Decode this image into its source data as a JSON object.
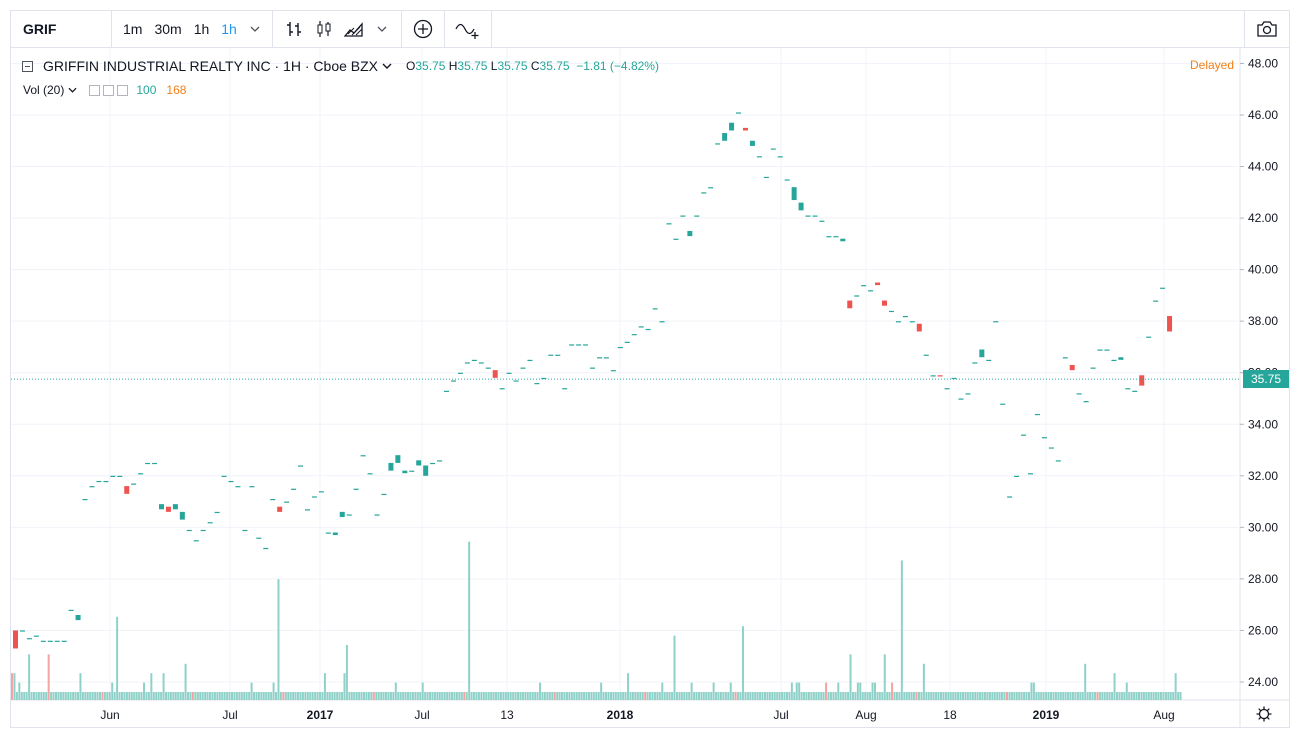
{
  "toolbar": {
    "symbol": "GRIF",
    "intervals": [
      "1m",
      "30m",
      "1h"
    ],
    "active_interval": "1h",
    "chevron": "⌄",
    "icons": [
      "bar-style-icon",
      "candle-style-icon",
      "area-style-icon",
      "compare-add-icon",
      "indicators-icon",
      "camera-icon"
    ]
  },
  "legend": {
    "title": "GRIFFIN INDUSTRIAL REALTY INC · 1H · Cboe BZX",
    "o_label": "O",
    "o": "35.75",
    "h_label": "H",
    "h": "35.75",
    "l_label": "L",
    "l": "35.75",
    "c_label": "C",
    "c": "35.75",
    "change": "−1.81 (−4.82%)",
    "delayed": "Delayed"
  },
  "volume_legend": {
    "label": "Vol (20)",
    "v1": "100",
    "v2": "168"
  },
  "colors": {
    "up": "#26a69a",
    "down": "#ef5350",
    "vol_up": "#8fd1c9",
    "vol_down": "#f4a3a3",
    "grid": "#f0f3fa"
  },
  "last_price": "35.75",
  "chart_data": {
    "type": "bar",
    "y_ticks": [
      "48.00",
      "46.00",
      "44.00",
      "42.00",
      "40.00",
      "38.00",
      "36.00",
      "34.00",
      "32.00",
      "30.00",
      "28.00",
      "26.00",
      "24.00"
    ],
    "y_range": [
      23.3,
      48.6
    ],
    "x_ticks": [
      "Jun",
      "Jul",
      "2017",
      "Jul",
      "13",
      "2018",
      "Jul",
      "Aug",
      "18",
      "2019",
      "Aug"
    ],
    "bars": [
      {
        "p": [
          26,
          25.3
        ],
        "d": 1
      },
      {
        "p": [
          26,
          26
        ]
      },
      {
        "p": [
          25.7,
          25.7
        ]
      },
      {
        "p": [
          25.8,
          25.8
        ]
      },
      {
        "p": [
          25.6,
          25.6
        ]
      },
      {
        "p": [
          25.6,
          25.6
        ]
      },
      {
        "p": [
          25.6,
          25.6
        ]
      },
      {
        "p": [
          25.6,
          25.6
        ]
      },
      {
        "p": [
          26.8,
          26.8
        ]
      },
      {
        "p": [
          26.6,
          26.4
        ]
      },
      {
        "p": [
          31.1,
          31.1
        ]
      },
      {
        "p": [
          31.6,
          31.6
        ]
      },
      {
        "p": [
          31.8,
          31.8
        ]
      },
      {
        "p": [
          31.8,
          31.8
        ]
      },
      {
        "p": [
          32,
          32
        ]
      },
      {
        "p": [
          32,
          32
        ]
      },
      {
        "p": [
          31.6,
          31.3
        ],
        "d": 1
      },
      {
        "p": [
          31.7,
          31.7
        ]
      },
      {
        "p": [
          32.1,
          32.1
        ]
      },
      {
        "p": [
          32.5,
          32.5
        ]
      },
      {
        "p": [
          32.5,
          32.5
        ]
      },
      {
        "p": [
          30.7,
          30.9
        ]
      },
      {
        "p": [
          30.8,
          30.6
        ],
        "d": 1
      },
      {
        "p": [
          30.7,
          30.9
        ]
      },
      {
        "p": [
          30.6,
          30.3
        ]
      },
      {
        "p": [
          29.9,
          29.9
        ]
      },
      {
        "p": [
          29.5,
          29.5
        ]
      },
      {
        "p": [
          29.9,
          29.9
        ]
      },
      {
        "p": [
          30.2,
          30.2
        ]
      },
      {
        "p": [
          30.6,
          30.6
        ]
      },
      {
        "p": [
          32,
          32
        ]
      },
      {
        "p": [
          31.8,
          31.8
        ]
      },
      {
        "p": [
          31.6,
          31.6
        ]
      },
      {
        "p": [
          29.9,
          29.9
        ]
      },
      {
        "p": [
          31.6,
          31.6
        ]
      },
      {
        "p": [
          29.6,
          29.6
        ]
      },
      {
        "p": [
          29.2,
          29.2
        ]
      },
      {
        "p": [
          31.1,
          31.1
        ]
      },
      {
        "p": [
          30.8,
          30.6
        ],
        "d": 1
      },
      {
        "p": [
          31,
          31
        ]
      },
      {
        "p": [
          31.5,
          31.5
        ]
      },
      {
        "p": [
          32.4,
          32.4
        ]
      },
      {
        "p": [
          30.7,
          30.7
        ]
      },
      {
        "p": [
          31.2,
          31.2
        ]
      },
      {
        "p": [
          31.4,
          31.4
        ]
      },
      {
        "p": [
          29.8,
          29.8
        ]
      },
      {
        "p": [
          29.7,
          29.8
        ]
      },
      {
        "p": [
          30.4,
          30.6
        ]
      },
      {
        "p": [
          30.5,
          30.5
        ]
      },
      {
        "p": [
          31.5,
          31.5
        ]
      },
      {
        "p": [
          32.8,
          32.8
        ]
      },
      {
        "p": [
          32.1,
          32.1
        ]
      },
      {
        "p": [
          30.5,
          30.5
        ]
      },
      {
        "p": [
          31.3,
          31.3
        ]
      },
      {
        "p": [
          32.2,
          32.5
        ]
      },
      {
        "p": [
          32.5,
          32.8
        ]
      },
      {
        "p": [
          32.2,
          32.1
        ]
      },
      {
        "p": [
          32.2,
          32.2
        ]
      },
      {
        "p": [
          32.4,
          32.6
        ]
      },
      {
        "p": [
          32,
          32.4
        ]
      },
      {
        "p": [
          32.5,
          32.5
        ]
      },
      {
        "p": [
          32.6,
          32.6
        ]
      },
      {
        "p": [
          35.3,
          35.3
        ]
      },
      {
        "p": [
          35.7,
          35.7
        ]
      },
      {
        "p": [
          36,
          36
        ]
      },
      {
        "p": [
          36.4,
          36.4
        ]
      },
      {
        "p": [
          36.5,
          36.5
        ]
      },
      {
        "p": [
          36.4,
          36.4
        ]
      },
      {
        "p": [
          36.2,
          36.2
        ]
      },
      {
        "p": [
          36.1,
          35.8
        ],
        "d": 1
      },
      {
        "p": [
          35.4,
          35.4
        ]
      },
      {
        "p": [
          36,
          36
        ]
      },
      {
        "p": [
          35.7,
          35.7
        ]
      },
      {
        "p": [
          36.2,
          36.2
        ]
      },
      {
        "p": [
          36.5,
          36.5
        ]
      },
      {
        "p": [
          35.6,
          35.6
        ]
      },
      {
        "p": [
          35.8,
          35.8
        ]
      },
      {
        "p": [
          36.7,
          36.7
        ]
      },
      {
        "p": [
          36.7,
          36.7
        ]
      },
      {
        "p": [
          35.4,
          35.4
        ]
      },
      {
        "p": [
          37.1,
          37.1
        ]
      },
      {
        "p": [
          37.1,
          37.1
        ]
      },
      {
        "p": [
          37.1,
          37.1
        ]
      },
      {
        "p": [
          36.2,
          36.2
        ]
      },
      {
        "p": [
          36.6,
          36.6
        ]
      },
      {
        "p": [
          36.6,
          36.6
        ]
      },
      {
        "p": [
          36.1,
          36.1
        ]
      },
      {
        "p": [
          37,
          37
        ]
      },
      {
        "p": [
          37.2,
          37.2
        ]
      },
      {
        "p": [
          37.5,
          37.5
        ]
      },
      {
        "p": [
          37.8,
          37.8
        ]
      },
      {
        "p": [
          37.7,
          37.7
        ]
      },
      {
        "p": [
          38.5,
          38.5
        ]
      },
      {
        "p": [
          38,
          38
        ]
      },
      {
        "p": [
          41.8,
          41.8
        ]
      },
      {
        "p": [
          41.2,
          41.2
        ]
      },
      {
        "p": [
          42.1,
          42.1
        ]
      },
      {
        "p": [
          41.5,
          41.3
        ]
      },
      {
        "p": [
          42.1,
          42.1
        ]
      },
      {
        "p": [
          43,
          43
        ]
      },
      {
        "p": [
          43.2,
          43.2
        ]
      },
      {
        "p": [
          44.9,
          44.9
        ]
      },
      {
        "p": [
          45,
          45.3
        ]
      },
      {
        "p": [
          45.4,
          45.7
        ]
      },
      {
        "p": [
          46.1,
          46.1
        ]
      },
      {
        "p": [
          45.5,
          45.4
        ],
        "d": 1
      },
      {
        "p": [
          45,
          44.8
        ]
      },
      {
        "p": [
          44.4,
          44.4
        ]
      },
      {
        "p": [
          43.6,
          43.6
        ]
      },
      {
        "p": [
          44.7,
          44.7
        ]
      },
      {
        "p": [
          44.4,
          44.4
        ]
      },
      {
        "p": [
          43.5,
          43.5
        ]
      },
      {
        "p": [
          42.7,
          43.2
        ]
      },
      {
        "p": [
          42.3,
          42.6
        ]
      },
      {
        "p": [
          42.1,
          42.1
        ]
      },
      {
        "p": [
          42.1,
          42.1
        ]
      },
      {
        "p": [
          41.9,
          41.9
        ]
      },
      {
        "p": [
          41.3,
          41.3
        ]
      },
      {
        "p": [
          41.3,
          41.3
        ]
      },
      {
        "p": [
          41.1,
          41.2
        ]
      },
      {
        "p": [
          38.8,
          38.5
        ],
        "d": 1
      },
      {
        "p": [
          39,
          39
        ]
      },
      {
        "p": [
          39.4,
          39.4
        ]
      },
      {
        "p": [
          39.2,
          39.2
        ]
      },
      {
        "p": [
          39.5,
          39.4
        ],
        "d": 1
      },
      {
        "p": [
          38.8,
          38.6
        ],
        "d": 1
      },
      {
        "p": [
          38.4,
          38.4
        ]
      },
      {
        "p": [
          38,
          38
        ]
      },
      {
        "p": [
          38.2,
          38.2
        ]
      },
      {
        "p": [
          38,
          38
        ]
      },
      {
        "p": [
          37.9,
          37.6
        ],
        "d": 1
      },
      {
        "p": [
          36.7,
          36.7
        ]
      },
      {
        "p": [
          35.9,
          35.9
        ]
      },
      {
        "p": [
          35.9,
          35.9
        ],
        "d": 1
      },
      {
        "p": [
          35.4,
          35.4
        ]
      },
      {
        "p": [
          35.8,
          35.8
        ]
      },
      {
        "p": [
          35,
          35
        ]
      },
      {
        "p": [
          35.2,
          35.2
        ]
      },
      {
        "p": [
          36.4,
          36.4
        ]
      },
      {
        "p": [
          36.6,
          36.9
        ]
      },
      {
        "p": [
          36.5,
          36.5
        ]
      },
      {
        "p": [
          38,
          38
        ]
      },
      {
        "p": [
          34.8,
          34.8
        ]
      },
      {
        "p": [
          31.2,
          31.2
        ]
      },
      {
        "p": [
          32,
          32
        ]
      },
      {
        "p": [
          33.6,
          33.6
        ]
      },
      {
        "p": [
          32.1,
          32.1
        ]
      },
      {
        "p": [
          34.4,
          34.4
        ]
      },
      {
        "p": [
          33.5,
          33.5
        ]
      },
      {
        "p": [
          33.1,
          33.1
        ]
      },
      {
        "p": [
          32.6,
          32.6
        ]
      },
      {
        "p": [
          36.6,
          36.6
        ]
      },
      {
        "p": [
          36.3,
          36.1
        ],
        "d": 1
      },
      {
        "p": [
          35.2,
          35.2
        ]
      },
      {
        "p": [
          34.9,
          34.9
        ]
      },
      {
        "p": [
          36.2,
          36.2
        ]
      },
      {
        "p": [
          36.9,
          36.9
        ]
      },
      {
        "p": [
          36.9,
          36.9
        ]
      },
      {
        "p": [
          36.5,
          36.5
        ]
      },
      {
        "p": [
          36.5,
          36.6
        ]
      },
      {
        "p": [
          35.4,
          35.4
        ]
      },
      {
        "p": [
          35.3,
          35.3
        ]
      },
      {
        "p": [
          35.9,
          35.5
        ],
        "d": 1
      },
      {
        "p": [
          37.4,
          37.4
        ]
      },
      {
        "p": [
          38.8,
          38.8
        ]
      },
      {
        "p": [
          39.3,
          39.3
        ]
      },
      {
        "p": [
          38.2,
          37.6
        ],
        "d": 1
      }
    ],
    "volume_levels": [
      3,
      3,
      1,
      2,
      1,
      1,
      1,
      5,
      1,
      1,
      1,
      1,
      1,
      1,
      1,
      5,
      1,
      1,
      1,
      1,
      1,
      1,
      1,
      1,
      1,
      1,
      1,
      1,
      3,
      1,
      1,
      1,
      1,
      1,
      1,
      1,
      1,
      1,
      1,
      1,
      1,
      2,
      1,
      9,
      1,
      1,
      1,
      1,
      1,
      1,
      1,
      1,
      1,
      1,
      2,
      1,
      1,
      3,
      1,
      1,
      1,
      1,
      3,
      1,
      1,
      1,
      1,
      1,
      1,
      1,
      1,
      4,
      1,
      1,
      1,
      1,
      1,
      1,
      1,
      1,
      1,
      1,
      1,
      1,
      1,
      1,
      1,
      1,
      1,
      1,
      1,
      1,
      1,
      1,
      1,
      1,
      1,
      1,
      2,
      1,
      1,
      1,
      1,
      1,
      1,
      1,
      1,
      2,
      1,
      13,
      1,
      1,
      1,
      1,
      1,
      1,
      1,
      1,
      1,
      1,
      1,
      1,
      1,
      1,
      1,
      1,
      1,
      1,
      3,
      1,
      1,
      1,
      1,
      1,
      1,
      1,
      3,
      6,
      1,
      1,
      1,
      1,
      1,
      1,
      1,
      1,
      1,
      1,
      1,
      1,
      1,
      1,
      1,
      1,
      1,
      1,
      1,
      2,
      1,
      1,
      1,
      1,
      1,
      1,
      1,
      1,
      1,
      1,
      2,
      1,
      1,
      1,
      1,
      1,
      1,
      1,
      1,
      1,
      1,
      1,
      1,
      1,
      1,
      1,
      1,
      1,
      1,
      17,
      1,
      1,
      1,
      1,
      1,
      1,
      1,
      1,
      1,
      1,
      1,
      1,
      1,
      1,
      1,
      1,
      1,
      1,
      1,
      1,
      1,
      1,
      1,
      1,
      1,
      1,
      1,
      1,
      2,
      1,
      1,
      1,
      1,
      1,
      1,
      1,
      1,
      1,
      1,
      1,
      1,
      1,
      1,
      1,
      1,
      1,
      1,
      1,
      1,
      1,
      1,
      1,
      1,
      2,
      1,
      1,
      1,
      1,
      1,
      1,
      1,
      1,
      1,
      1,
      3,
      1,
      1,
      1,
      1,
      1,
      1,
      1,
      1,
      1,
      1,
      1,
      1,
      1,
      2,
      1,
      1,
      1,
      1,
      7,
      1,
      1,
      1,
      1,
      1,
      1,
      2,
      1,
      1,
      1,
      1,
      1,
      1,
      1,
      1,
      2,
      1,
      1,
      1,
      1,
      1,
      1,
      2,
      1,
      1,
      1,
      1,
      8,
      1,
      1,
      1,
      1,
      1,
      1,
      1,
      1,
      1,
      1,
      1,
      1,
      1,
      1,
      1,
      1,
      1,
      1,
      1,
      2,
      1,
      2,
      2,
      1,
      1,
      1,
      1,
      1,
      1,
      1,
      1,
      1,
      1,
      2,
      1,
      1,
      1,
      1,
      2,
      1,
      1,
      1,
      1,
      5,
      1,
      1,
      2,
      2,
      1,
      1,
      1,
      1,
      2,
      2,
      1,
      1,
      1,
      5,
      1,
      1,
      2,
      1,
      1,
      1,
      15,
      1,
      1,
      1,
      1,
      1,
      1,
      1,
      1,
      4,
      1,
      1,
      1,
      1,
      1,
      1,
      1,
      1,
      1,
      1,
      1,
      1,
      1,
      1,
      1,
      1,
      1,
      1,
      1,
      1,
      1,
      1,
      1,
      1,
      1,
      1,
      1,
      1,
      1,
      1,
      1,
      1,
      1,
      1,
      1,
      1,
      1,
      1,
      1,
      1,
      1,
      1,
      1,
      2,
      2,
      1,
      1,
      1,
      1,
      1,
      1,
      1,
      1,
      1,
      1,
      1,
      1,
      1,
      1,
      1,
      1,
      1,
      1,
      1,
      1,
      4,
      1,
      1,
      1,
      1,
      1,
      1,
      1,
      1,
      1,
      1,
      1,
      3,
      1,
      1,
      1,
      1,
      2,
      1,
      1,
      1,
      1,
      1,
      1,
      1,
      1,
      1,
      1,
      1,
      1,
      1,
      1,
      1,
      1,
      1,
      1,
      1,
      3,
      1,
      1
    ]
  }
}
